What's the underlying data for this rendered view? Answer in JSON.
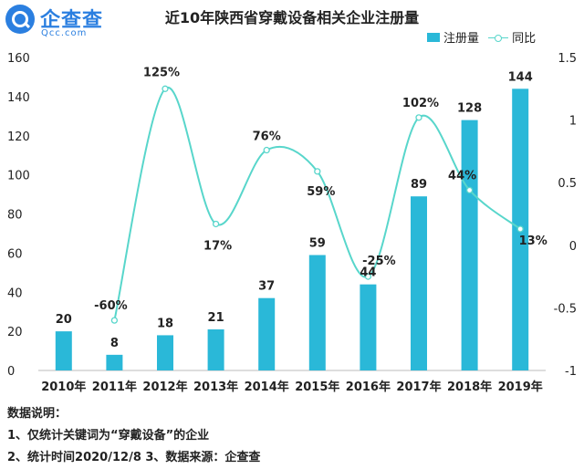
{
  "logo": {
    "name": "企查查",
    "domain": "Qcc.com"
  },
  "chart_data": {
    "type": "bar",
    "title": "近10年陕西省穿戴设备相关企业注册量",
    "categories": [
      "2010年",
      "2011年",
      "2012年",
      "2013年",
      "2014年",
      "2015年",
      "2016年",
      "2017年",
      "2018年",
      "2019年"
    ],
    "series": [
      {
        "name": "注册量",
        "type": "bar",
        "axis": "left",
        "values": [
          20,
          8,
          18,
          21,
          37,
          59,
          44,
          89,
          128,
          144
        ],
        "color": "#2ab8d8"
      },
      {
        "name": "同比",
        "type": "line",
        "axis": "right",
        "values": [
          null,
          -0.6,
          1.25,
          0.17,
          0.76,
          0.59,
          -0.25,
          1.02,
          0.44,
          0.13
        ],
        "labels": [
          null,
          "-60%",
          "125%",
          "17%",
          "76%",
          "59%",
          "-25%",
          "102%",
          "44%",
          "13%"
        ],
        "color": "#58d6cb"
      }
    ],
    "ylim": [
      0,
      160
    ],
    "yticks": [
      0,
      20,
      40,
      60,
      80,
      100,
      120,
      140,
      160
    ],
    "y2lim": [
      -1,
      1.5
    ],
    "y2ticks": [
      "-1",
      "-0.5",
      "0",
      "0.5",
      "1",
      "1.5"
    ],
    "legend_position": "top-right",
    "grid": false
  },
  "notes": {
    "heading": "数据说明：",
    "line1": "1、仅统计关键词为“穿戴设备”的企业",
    "line2": "2、统计时间2020/12/8   3、数据来源：企查查"
  }
}
